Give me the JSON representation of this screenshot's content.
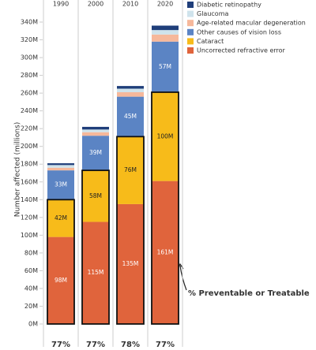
{
  "chart_data": {
    "type": "bar",
    "stacked": true,
    "y_label": "Number affected (millions)",
    "categories": [
      "1990",
      "2000",
      "2010",
      "2020"
    ],
    "series": [
      {
        "name": "Uncorrected refractive error",
        "color": "#e0643c",
        "values": [
          98,
          115,
          135,
          161
        ],
        "value_labels": [
          "98M",
          "115M",
          "135M",
          "161M"
        ]
      },
      {
        "name": "Cataract",
        "color": "#f7bb1a",
        "values": [
          42,
          58,
          76,
          100
        ],
        "value_labels": [
          "42M",
          "58M",
          "76M",
          "100M"
        ]
      },
      {
        "name": "Other causes of vision loss",
        "color": "#5b84c4",
        "values": [
          33,
          39,
          45,
          57
        ],
        "value_labels": [
          "33M",
          "39M",
          "45M",
          "57M"
        ]
      },
      {
        "name": "Age-related macular degeneration",
        "color": "#f6b89b",
        "values": [
          3,
          4,
          5,
          8
        ]
      },
      {
        "name": "Glaucoma",
        "color": "#cfe3ec",
        "values": [
          3,
          3,
          4,
          5
        ]
      },
      {
        "name": "Diabetic retinopathy",
        "color": "#1f3e7a",
        "values": [
          2,
          3,
          3,
          5
        ]
      }
    ],
    "ylim": [
      0,
      340
    ],
    "yticks": [
      {
        "value": 0,
        "label": "0M"
      },
      {
        "value": 20,
        "label": "20M"
      },
      {
        "value": 40,
        "label": "40M"
      },
      {
        "value": 60,
        "label": "60M"
      },
      {
        "value": 80,
        "label": "80M"
      },
      {
        "value": 100,
        "label": "100M"
      },
      {
        "value": 120,
        "label": "120M"
      },
      {
        "value": 140,
        "label": "140M"
      },
      {
        "value": 160,
        "label": "160M"
      },
      {
        "value": 180,
        "label": "180M"
      },
      {
        "value": 200,
        "label": "200M"
      },
      {
        "value": 220,
        "label": "220M"
      },
      {
        "value": 240,
        "label": "240M"
      },
      {
        "value": 260,
        "label": "260M"
      },
      {
        "value": 280,
        "label": "280M"
      },
      {
        "value": 300,
        "label": "300M"
      },
      {
        "value": 320,
        "label": "320M"
      },
      {
        "value": 340,
        "label": "340M"
      }
    ],
    "annotation": "% Preventable or Treatable",
    "preventable_labels": [
      "77%",
      "77%",
      "78%",
      "77%"
    ]
  }
}
